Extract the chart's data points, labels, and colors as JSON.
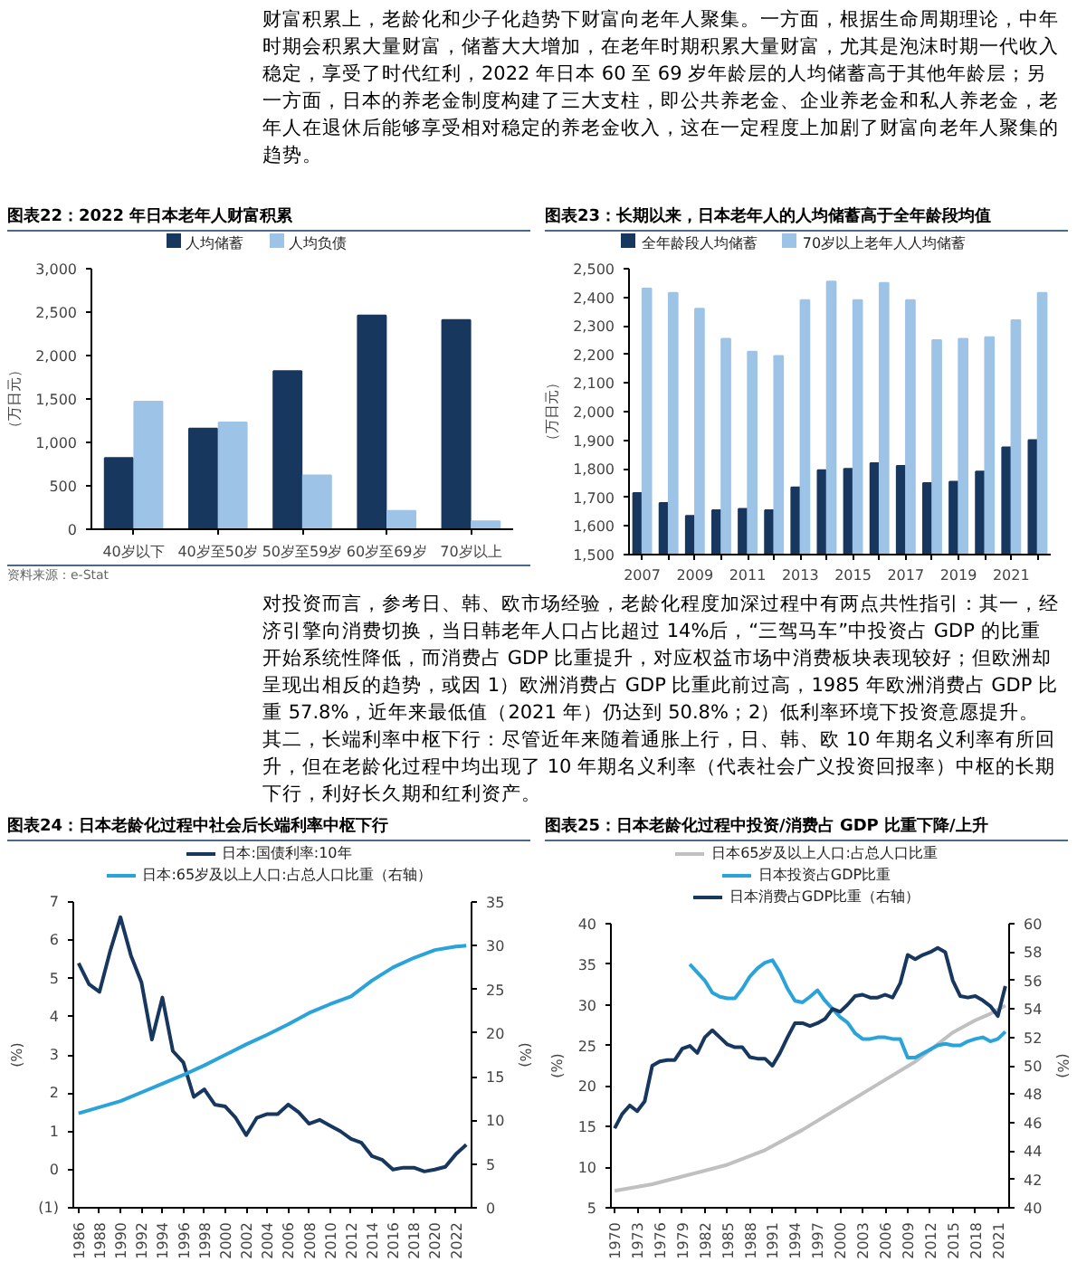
{
  "chart_data": [
    {
      "type": "other",
      "annotations": [
        "财富积累上，老龄化和少子化趋势下财富向老年人聚集。一方面，根据生命周期理论，中年时期会积累大量财富，储蓄大大增加，在老年时期积累大量财富，尤其是泡沫时期一代收入稳定，享受了时代红利，2022 年日本 60 至 69 岁年龄层的人均储蓄高于其他年龄层；另一方面，日本的养老金制度构建了三大支柱，即公共养老金、企业养老金和私人养老金，老年人在退休后能够享受相对稳定的养老金收入，这在一定程度上加剧了财富向老年人聚集的趋势。"
      ]
    },
    {
      "type": "bar",
      "title": "图表22：2022 年日本老年人财富积累",
      "ylabel": "（万日元）",
      "annotations": [
        "资料来源：e-Stat"
      ],
      "categories": [
        "40岁以下",
        "40岁至50岁",
        "50岁至59岁",
        "60岁至69岁",
        "70岁以上"
      ],
      "series": [
        {
          "name": "人均储蓄",
          "color": "#17375e",
          "values": [
            820,
            1160,
            1820,
            2460,
            2410
          ]
        },
        {
          "name": "人均负债",
          "color": "#9dc3e6",
          "values": [
            1470,
            1230,
            620,
            210,
            90
          ]
        }
      ],
      "ylim": [
        0,
        3000
      ],
      "yticks": [
        0,
        500,
        {
          "value": 1000,
          "label": "1,000"
        },
        {
          "value": 1500,
          "label": "1,500"
        },
        {
          "value": 2000,
          "label": "2,000"
        },
        {
          "value": 2500,
          "label": "2,500"
        },
        {
          "value": 3000,
          "label": "3,000"
        }
      ],
      "legend": "top"
    },
    {
      "type": "bar",
      "title": "图表23：长期以来，日本老年人的人均储蓄高于全年龄段均值",
      "ylabel": "（万日元）",
      "categories": [
        "2007",
        null,
        "2009",
        null,
        "2011",
        null,
        "2013",
        null,
        "2015",
        null,
        "2017",
        null,
        "2019",
        null,
        "2021",
        null
      ],
      "series": [
        {
          "name": "全年龄段人均储蓄",
          "color": "#17375e",
          "values": [
            1715,
            1680,
            1635,
            1655,
            1660,
            1655,
            1735,
            1795,
            1800,
            1820,
            1810,
            1750,
            1755,
            1790,
            1875,
            1900
          ]
        },
        {
          "name": "70岁以上老年人人均储蓄",
          "color": "#9dc3e6",
          "values": [
            2430,
            2415,
            2360,
            2255,
            2210,
            2195,
            2390,
            2455,
            2390,
            2450,
            2390,
            2250,
            2255,
            2260,
            2320,
            2415
          ]
        }
      ],
      "ylim": [
        1500,
        2500
      ],
      "yticks": [
        {
          "value": 1500,
          "label": "1,500"
        },
        {
          "value": 1600,
          "label": "1,600"
        },
        {
          "value": 1700,
          "label": "1,700"
        },
        {
          "value": 1800,
          "label": "1,800"
        },
        {
          "value": 1900,
          "label": "1,900"
        },
        {
          "value": 2000,
          "label": "2,000"
        },
        {
          "value": 2100,
          "label": "2,100"
        },
        {
          "value": 2200,
          "label": "2,200"
        },
        {
          "value": 2300,
          "label": "2,300"
        },
        {
          "value": 2400,
          "label": "2,400"
        },
        {
          "value": 2500,
          "label": "2,500"
        }
      ],
      "legend": "top"
    },
    {
      "type": "other",
      "annotations": [
        "对投资而言，参考日、韩、欧市场经验，老龄化程度加深过程中有两点共性指引：其一，经济引擎向消费切换，当日韩老年人口占比超过 14%后，“三驾马车”中投资占 GDP 的比重开始系统性降低，而消费占 GDP 比重提升，对应权益市场中消费板块表现较好；但欧洲却呈现出相反的趋势，或因 1）欧洲消费占 GDP 比重此前过高，1985 年欧洲消费占 GDP 比重 57.8%，近年来最低值（2021 年）仍达到 50.8%；2）低利率环境下投资意愿提升。其二，长端利率中枢下行：尽管近年来随着通胀上行，日、韩、欧 10 年期名义利率有所回升，但在老龄化过程中均出现了 10 年期名义利率（代表社会广义投资回报率）中枢的长期下行，利好长久期和红利资产。"
      ]
    },
    {
      "type": "line",
      "title": "图表24：日本老龄化过程中社会后长端利率中枢下行",
      "ylabel": "(%)",
      "y2label": "(%)",
      "series": [
        {
          "name": "日本:国债利率:10年",
          "color": "#17375e",
          "x": [
            1986,
            1987,
            1988,
            1989,
            1990,
            1991,
            1992,
            1993,
            1994,
            1995,
            1996,
            1997,
            1998,
            1999,
            2000,
            2001,
            2002,
            2003,
            2004,
            2005,
            2006,
            2007,
            2008,
            2009,
            2010,
            2011,
            2012,
            2013,
            2014,
            2015,
            2016,
            2017,
            2018,
            2019,
            2020,
            2021,
            2022,
            2023
          ],
          "values": [
            5.4,
            4.85,
            4.65,
            5.7,
            6.6,
            5.6,
            4.9,
            3.4,
            4.5,
            3.1,
            2.8,
            1.9,
            2.1,
            1.7,
            1.65,
            1.35,
            0.9,
            1.35,
            1.45,
            1.45,
            1.7,
            1.5,
            1.2,
            1.3,
            1.15,
            1.0,
            0.8,
            0.7,
            0.35,
            0.25,
            0.0,
            0.05,
            0.05,
            -0.05,
            0.0,
            0.07,
            0.4,
            0.65
          ]
        },
        {
          "name": "日本:65岁及以上人口:占总人口比重（右轴）",
          "color": "#29a3da",
          "axis": "y2",
          "x": [
            1986,
            1988,
            1990,
            1992,
            1994,
            1996,
            1998,
            2000,
            2002,
            2004,
            2006,
            2008,
            2010,
            2012,
            2014,
            2016,
            2018,
            2020,
            2022,
            2023
          ],
          "values": [
            10.8,
            11.5,
            12.2,
            13.2,
            14.2,
            15.2,
            16.3,
            17.5,
            18.7,
            19.8,
            21.0,
            22.3,
            23.3,
            24.2,
            26.0,
            27.5,
            28.6,
            29.5,
            29.9,
            30.0
          ]
        }
      ],
      "xlim": [
        1985.5,
        2023.5
      ],
      "xticks": [
        1986,
        1988,
        1990,
        1992,
        1994,
        1996,
        1998,
        2000,
        2002,
        2004,
        2006,
        2008,
        2010,
        2012,
        2014,
        2016,
        2018,
        2020,
        2022
      ],
      "ylim": [
        -1,
        7
      ],
      "yticks": [
        {
          "value": -1,
          "label": "(1)"
        },
        0,
        1,
        2,
        3,
        4,
        5,
        6,
        7
      ],
      "y2lim": [
        0,
        35
      ],
      "y2ticks": [
        0,
        5,
        10,
        15,
        20,
        25,
        30,
        35
      ],
      "legend": "top"
    },
    {
      "type": "line",
      "title": "图表25：日本老龄化过程中投资/消费占 GDP 比重下降/上升",
      "ylabel": "(%)",
      "y2label": "(%)",
      "series": [
        {
          "name": "日本65岁及以上人口:占总人口比重",
          "color": "#c0c0c0",
          "x": [
            1970,
            1975,
            1980,
            1985,
            1990,
            1995,
            2000,
            2005,
            2010,
            2015,
            2018,
            2020,
            2022
          ],
          "values": [
            7.1,
            7.9,
            9.1,
            10.3,
            12.1,
            14.6,
            17.4,
            20.2,
            23.0,
            26.6,
            28.1,
            28.9,
            29.9
          ]
        },
        {
          "name": "日本投资占GDP比重",
          "color": "#29a3da",
          "x": [
            1980,
            1981,
            1982,
            1983,
            1984,
            1985,
            1986,
            1987,
            1988,
            1989,
            1990,
            1991,
            1992,
            1993,
            1994,
            1995,
            1996,
            1997,
            1998,
            1999,
            2000,
            2001,
            2002,
            2003,
            2004,
            2005,
            2006,
            2007,
            2008,
            2009,
            2010,
            2011,
            2012,
            2013,
            2014,
            2015,
            2016,
            2017,
            2018,
            2019,
            2020,
            2021,
            2022
          ],
          "values": [
            35,
            34,
            33,
            31.5,
            31,
            30.8,
            30.8,
            32,
            33.5,
            34.5,
            35.2,
            35.5,
            34,
            32,
            30.5,
            30.3,
            31,
            31.8,
            30.5,
            29.5,
            28.5,
            27.8,
            26.5,
            25.8,
            25.8,
            26,
            26,
            25.8,
            25.8,
            23.5,
            23.5,
            24,
            24.5,
            25,
            25.2,
            25,
            25,
            25.5,
            25.8,
            26,
            25.5,
            25.8,
            26.7
          ]
        },
        {
          "name": "日本消费占GDP比重（右轴）",
          "color": "#17375e",
          "axis": "y2",
          "x": [
            1970,
            1971,
            1972,
            1973,
            1974,
            1975,
            1976,
            1977,
            1978,
            1979,
            1980,
            1981,
            1982,
            1983,
            1984,
            1985,
            1986,
            1987,
            1988,
            1989,
            1990,
            1991,
            1992,
            1993,
            1994,
            1995,
            1996,
            1997,
            1998,
            1999,
            2000,
            2001,
            2002,
            2003,
            2004,
            2005,
            2006,
            2007,
            2008,
            2009,
            2010,
            2011,
            2012,
            2013,
            2014,
            2015,
            2016,
            2017,
            2018,
            2019,
            2020,
            2021,
            2022
          ],
          "values": [
            45.6,
            46.6,
            47.2,
            46.8,
            47.5,
            50.0,
            50.3,
            50.4,
            50.4,
            51.2,
            51.4,
            50.9,
            52.0,
            52.5,
            52.0,
            51.5,
            51.3,
            51.3,
            50.6,
            50.5,
            50.5,
            50.0,
            50.9,
            52.0,
            53.0,
            53.0,
            52.8,
            53.0,
            53.3,
            54.0,
            53.8,
            54.3,
            54.9,
            55.0,
            54.8,
            54.8,
            55.0,
            54.8,
            55.8,
            57.8,
            57.5,
            57.8,
            58.0,
            58.3,
            58.0,
            56.0,
            54.9,
            54.8,
            54.9,
            54.6,
            54.2,
            53.5,
            55.6
          ]
        }
      ],
      "xlim": [
        1969.5,
        2022.5
      ],
      "xticks": [
        1970,
        1973,
        1976,
        1979,
        1982,
        1985,
        1988,
        1991,
        1994,
        1997,
        2000,
        2003,
        2006,
        2009,
        2012,
        2015,
        2018,
        2021
      ],
      "ylim": [
        5,
        40
      ],
      "yticks": [
        5,
        10,
        15,
        20,
        25,
        30,
        35,
        40
      ],
      "y2lim": [
        40,
        60
      ],
      "y2ticks": [
        40,
        42,
        44,
        46,
        48,
        50,
        52,
        54,
        56,
        58,
        60
      ],
      "legend": "top"
    }
  ]
}
